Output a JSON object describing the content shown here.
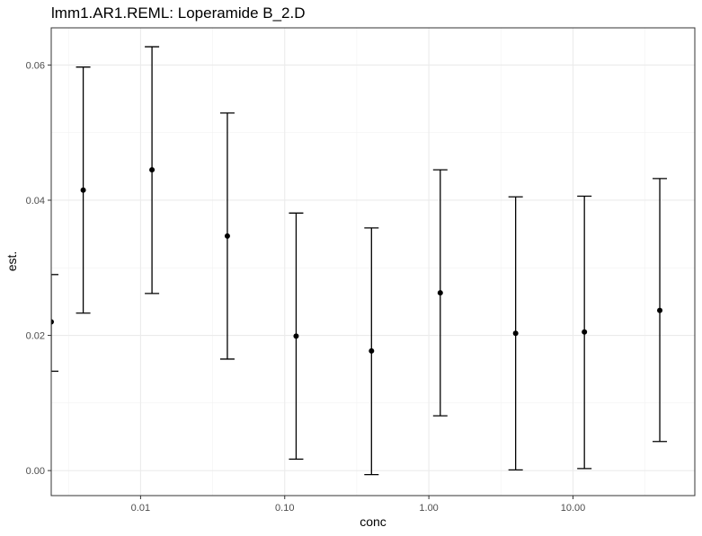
{
  "chart_data": {
    "type": "scatter",
    "title": "lmm1.AR1.REML: Loperamide B_2.D",
    "xlabel": "conc",
    "ylabel": "est.",
    "x_scale": "log10",
    "xlim": [
      0.0024,
      70
    ],
    "ylim": [
      -0.0037,
      0.0655
    ],
    "x_ticks": [
      0.01,
      0.1,
      1,
      10
    ],
    "x_tick_labels": [
      "0.01",
      "0.10",
      "1.00",
      "10.00"
    ],
    "y_ticks": [
      0,
      0.02,
      0.04,
      0.06
    ],
    "y_tick_labels": [
      "0.00",
      "0.02",
      "0.04",
      "0.06"
    ],
    "grid": true,
    "points": [
      {
        "x": 0.0024,
        "y": 0.022,
        "lower": 0.0147,
        "upper": 0.029
      },
      {
        "x": 0.004,
        "y": 0.0415,
        "lower": 0.0233,
        "upper": 0.0597
      },
      {
        "x": 0.012,
        "y": 0.0445,
        "lower": 0.0262,
        "upper": 0.0627
      },
      {
        "x": 0.04,
        "y": 0.0347,
        "lower": 0.0165,
        "upper": 0.0529
      },
      {
        "x": 0.12,
        "y": 0.0199,
        "lower": 0.0017,
        "upper": 0.0381
      },
      {
        "x": 0.4,
        "y": 0.0177,
        "lower": -0.0006,
        "upper": 0.0359
      },
      {
        "x": 1.2,
        "y": 0.0263,
        "lower": 0.0081,
        "upper": 0.0445
      },
      {
        "x": 4,
        "y": 0.0203,
        "lower": 0.0001,
        "upper": 0.0405
      },
      {
        "x": 12,
        "y": 0.0205,
        "lower": 0.0003,
        "upper": 0.0406
      },
      {
        "x": 40,
        "y": 0.0237,
        "lower": 0.0043,
        "upper": 0.0432
      }
    ]
  }
}
